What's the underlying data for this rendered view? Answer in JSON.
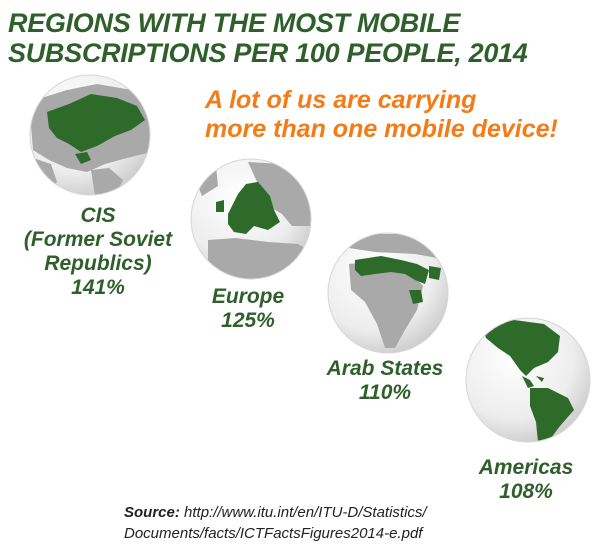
{
  "title": {
    "line1": "REGIONS WITH THE MOST MOBILE",
    "line2": "SUBSCRIPTIONS PER 100 PEOPLE, 2014"
  },
  "tagline": {
    "line1": "A lot of us are carrying",
    "line2": "more than one mobile device!"
  },
  "regions": [
    {
      "name_lines": [
        "CIS",
        "(Former Soviet",
        "Republics)"
      ],
      "value": "141%",
      "icon": "globe-cis-highlighted"
    },
    {
      "name_lines": [
        "Europe"
      ],
      "value": "125%",
      "icon": "globe-europe-highlighted"
    },
    {
      "name_lines": [
        "Arab States"
      ],
      "value": "110%",
      "icon": "globe-arab-states-highlighted"
    },
    {
      "name_lines": [
        "Americas"
      ],
      "value": "108%",
      "icon": "globe-americas-highlighted"
    }
  ],
  "source": {
    "label": "Source:",
    "url_line1": "http://www.itu.int/en/ITU-D/Statistics/",
    "url_line2": "Documents/facts/ICTFactsFigures2014-e.pdf"
  },
  "colors": {
    "title_green": "#2f5f2a",
    "highlight_green": "#2e6a2a",
    "tagline_orange": "#f47b16",
    "land_gray": "#aaaaaa",
    "ocean": "#f2f2f2"
  }
}
